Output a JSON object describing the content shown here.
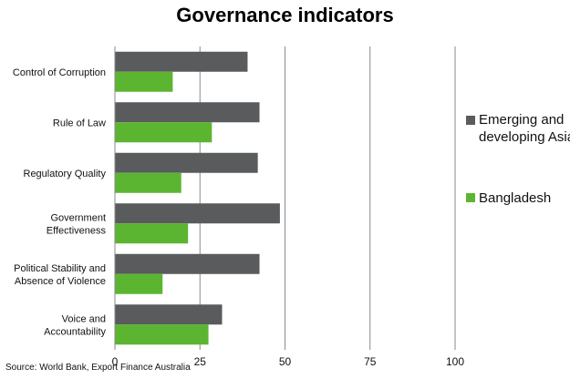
{
  "page": {
    "title": "Governance indicators",
    "source": "Source: World Bank, Export Finance Australia"
  },
  "chart_data": {
    "type": "bar",
    "orientation": "horizontal",
    "title": "Governance indicators",
    "xlabel": "",
    "ylabel": "",
    "xlim": [
      0,
      100
    ],
    "xticks": [
      0,
      25,
      50,
      75,
      100
    ],
    "grid": true,
    "legend_position": "right",
    "categories": [
      [
        "Control of Corruption"
      ],
      [
        "Rule of Law"
      ],
      [
        "Regulatory Quality"
      ],
      [
        "Government",
        "Effectiveness"
      ],
      [
        "Political Stability and",
        "Absence of Violence"
      ],
      [
        "Voice and",
        "Accountability"
      ]
    ],
    "series": [
      {
        "name": "Emerging and developing Asia",
        "legend_lines": [
          "Emerging and",
          "developing Asia"
        ],
        "color": "#595b5d",
        "values": [
          39,
          42.5,
          42,
          48.5,
          42.5,
          31.5
        ]
      },
      {
        "name": "Bangladesh",
        "legend_lines": [
          "Bangladesh"
        ],
        "color": "#5cb531",
        "values": [
          17,
          28.5,
          19.5,
          21.5,
          14,
          27.5
        ]
      }
    ]
  }
}
